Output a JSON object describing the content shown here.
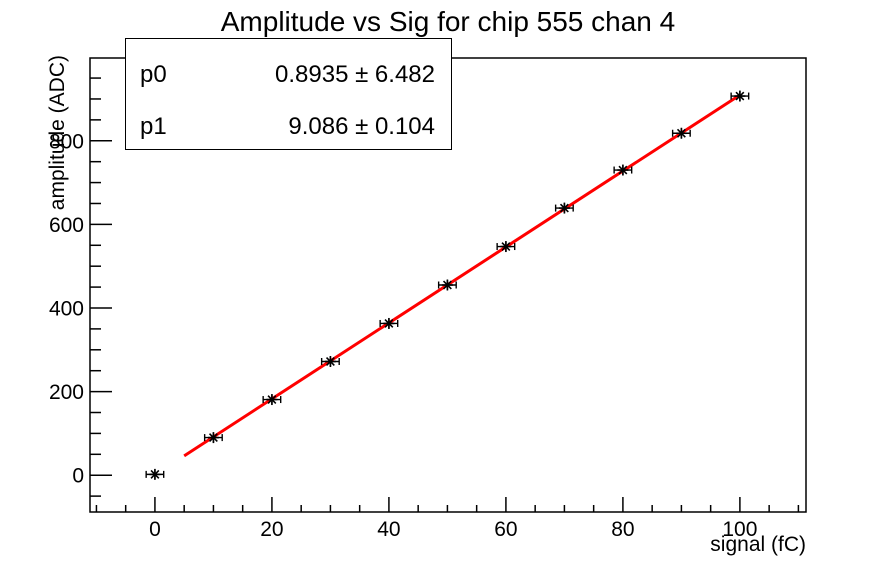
{
  "window": {
    "background": "#ffffff"
  },
  "title": "Amplitude vs Sig for chip 555 chan 4",
  "stats_box": {
    "rows": [
      {
        "param": "p0",
        "value": "0.8935 ± 6.482"
      },
      {
        "param": "p1",
        "value": "9.086 ± 0.104"
      }
    ]
  },
  "chart_data": {
    "type": "scatter",
    "title": "Amplitude vs Sig for chip 555 chan 4",
    "xlabel": "signal (fC)",
    "ylabel": "amplitude (ADC)",
    "x": [
      0,
      10,
      20,
      30,
      40,
      50,
      60,
      70,
      80,
      90,
      100
    ],
    "y": [
      2,
      90,
      181,
      272,
      363,
      455,
      547,
      639,
      730,
      818,
      907
    ],
    "xerr": 1.5,
    "yerr": 2,
    "marker": "asterisk",
    "xlim": [
      -11.1,
      111.3
    ],
    "ylim": [
      -88,
      998
    ],
    "x_major_ticks": [
      0,
      20,
      40,
      60,
      80,
      100
    ],
    "x_minor_step": 5,
    "y_major_ticks": [
      0,
      200,
      400,
      600,
      800
    ],
    "y_minor_step": 50,
    "grid": false,
    "legend": "none",
    "fit": {
      "type": "linear",
      "p0": 0.8935,
      "p1": 9.086,
      "range": [
        5,
        100
      ]
    },
    "colors": {
      "marker": "#000000",
      "fit_line": "#ff0000",
      "frame": "#000000",
      "background": "#ffffff",
      "text": "#000000"
    }
  }
}
